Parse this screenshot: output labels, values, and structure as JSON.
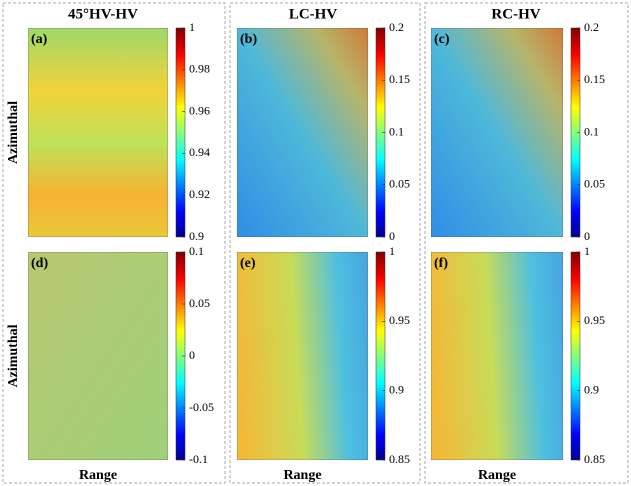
{
  "columns": [
    {
      "title": "45°HV-HV"
    },
    {
      "title": "LC-HV"
    },
    {
      "title": "RC-HV"
    }
  ],
  "y_label": "Azimuthal",
  "x_label": "Range",
  "panels": [
    {
      "label": "(a)",
      "colorbar": {
        "range": [
          0.9,
          1
        ],
        "ticks": [
          0.9,
          0.92,
          0.94,
          0.96,
          0.98,
          1
        ]
      }
    },
    {
      "label": "(b)",
      "colorbar": {
        "range": [
          0,
          0.2
        ],
        "ticks": [
          0,
          0.05,
          0.1,
          0.15,
          0.2
        ]
      }
    },
    {
      "label": "(c)",
      "colorbar": {
        "range": [
          0,
          0.2
        ],
        "ticks": [
          0,
          0.05,
          0.1,
          0.15,
          0.2
        ]
      }
    },
    {
      "label": "(d)",
      "colorbar": {
        "range": [
          -0.1,
          0.1
        ],
        "ticks": [
          -0.1,
          -0.05,
          0,
          0.05,
          0.1
        ]
      }
    },
    {
      "label": "(e)",
      "colorbar": {
        "range": [
          0.85,
          1
        ],
        "ticks": [
          0.85,
          0.9,
          0.95,
          1
        ]
      }
    },
    {
      "label": "(f)",
      "colorbar": {
        "range": [
          0.85,
          1
        ],
        "ticks": [
          0.85,
          0.9,
          0.95,
          1
        ]
      }
    }
  ]
}
